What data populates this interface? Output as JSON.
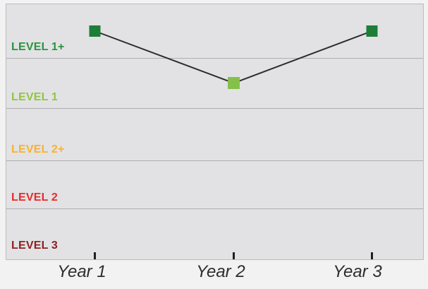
{
  "chart_data": {
    "type": "line",
    "x": [
      "Year 1",
      "Year 2",
      "Year 3"
    ],
    "series": [
      {
        "name": "level-by-year",
        "values": [
          "LEVEL 1+",
          "LEVEL 1",
          "LEVEL 1+"
        ]
      }
    ],
    "bands": [
      {
        "label": "LEVEL 1+",
        "color": "#2a9441"
      },
      {
        "label": "LEVEL 1",
        "color": "#8fc640"
      },
      {
        "label": "LEVEL 2+",
        "color": "#f9b32c"
      },
      {
        "label": "LEVEL 2",
        "color": "#e82b2a"
      },
      {
        "label": "LEVEL 3",
        "color": "#8e2122"
      }
    ],
    "y_order_top_to_bottom": [
      "LEVEL 1+",
      "LEVEL 1",
      "LEVEL 2+",
      "LEVEL 2",
      "LEVEL 3"
    ],
    "point_colors": [
      "#1e7d36",
      "#85c04a",
      "#1e7d36"
    ],
    "line_color": "#2e2b2c",
    "marker_shape": "square",
    "legend": "none",
    "grid": "horizontal band boundaries"
  }
}
